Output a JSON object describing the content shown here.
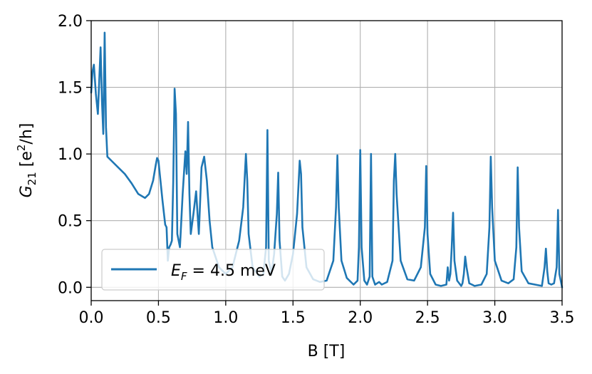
{
  "chart_data": {
    "type": "line",
    "title": "",
    "xlabel": "B [T]",
    "ylabel": {
      "main": "G",
      "sub": "21",
      "unit_open": " [e",
      "unit_sup": "2",
      "unit_close": "/h]"
    },
    "xlim": [
      0.0,
      3.5
    ],
    "ylim": [
      -0.1,
      2.0
    ],
    "xticks": [
      0.0,
      0.5,
      1.0,
      1.5,
      2.0,
      2.5,
      3.0,
      3.5
    ],
    "xtick_labels": [
      "0.0",
      "0.5",
      "1.0",
      "1.5",
      "2.0",
      "2.5",
      "3.0",
      "3.5"
    ],
    "yticks": [
      0.0,
      0.5,
      1.0,
      1.5,
      2.0
    ],
    "ytick_labels": [
      "0.0",
      "0.5",
      "1.0",
      "1.5",
      "2.0"
    ],
    "grid": true,
    "legend_position": "lower-left",
    "color": "#1f77b4",
    "series": [
      {
        "name": "E_F = 4.5 meV",
        "legend": {
          "main": "E",
          "sub": "F",
          "rest": " = 4.5 meV"
        },
        "x": [
          0.0,
          0.01,
          0.02,
          0.035,
          0.05,
          0.06,
          0.07,
          0.08,
          0.09,
          0.1,
          0.11,
          0.12,
          0.15,
          0.2,
          0.25,
          0.3,
          0.35,
          0.4,
          0.43,
          0.46,
          0.48,
          0.49,
          0.5,
          0.51,
          0.53,
          0.55,
          0.56,
          0.57,
          0.58,
          0.59,
          0.6,
          0.61,
          0.62,
          0.63,
          0.64,
          0.66,
          0.68,
          0.7,
          0.71,
          0.72,
          0.73,
          0.74,
          0.76,
          0.78,
          0.8,
          0.82,
          0.84,
          0.86,
          0.88,
          0.9,
          0.95,
          1.0,
          1.05,
          1.1,
          1.13,
          1.15,
          1.16,
          1.17,
          1.2,
          1.25,
          1.28,
          1.3,
          1.31,
          1.32,
          1.34,
          1.36,
          1.38,
          1.39,
          1.4,
          1.42,
          1.44,
          1.47,
          1.5,
          1.53,
          1.55,
          1.56,
          1.57,
          1.6,
          1.65,
          1.7,
          1.75,
          1.8,
          1.82,
          1.83,
          1.84,
          1.86,
          1.9,
          1.95,
          1.98,
          1.99,
          2.0,
          2.01,
          2.03,
          2.05,
          2.07,
          2.08,
          2.09,
          2.11,
          2.14,
          2.16,
          2.2,
          2.24,
          2.25,
          2.26,
          2.27,
          2.3,
          2.35,
          2.4,
          2.45,
          2.48,
          2.49,
          2.5,
          2.52,
          2.56,
          2.6,
          2.64,
          2.65,
          2.66,
          2.67,
          2.68,
          2.69,
          2.7,
          2.72,
          2.75,
          2.76,
          2.77,
          2.78,
          2.79,
          2.81,
          2.83,
          2.85,
          2.9,
          2.94,
          2.96,
          2.97,
          2.98,
          3.0,
          3.05,
          3.1,
          3.14,
          3.16,
          3.17,
          3.18,
          3.2,
          3.25,
          3.3,
          3.35,
          3.37,
          3.38,
          3.39,
          3.4,
          3.42,
          3.44,
          3.46,
          3.47,
          3.48,
          3.5
        ],
        "y": [
          1.46,
          1.62,
          1.67,
          1.45,
          1.3,
          1.55,
          1.8,
          1.4,
          1.15,
          1.91,
          1.2,
          0.98,
          0.95,
          0.9,
          0.85,
          0.78,
          0.7,
          0.67,
          0.7,
          0.8,
          0.92,
          0.97,
          0.95,
          0.85,
          0.65,
          0.47,
          0.45,
          0.2,
          0.3,
          0.32,
          0.35,
          0.8,
          1.49,
          1.3,
          0.4,
          0.3,
          0.7,
          1.02,
          0.85,
          1.24,
          0.7,
          0.4,
          0.55,
          0.72,
          0.4,
          0.9,
          0.98,
          0.8,
          0.5,
          0.3,
          0.15,
          0.1,
          0.15,
          0.35,
          0.6,
          1.0,
          0.8,
          0.4,
          0.15,
          0.08,
          0.1,
          0.3,
          1.18,
          0.2,
          0.1,
          0.25,
          0.55,
          0.86,
          0.35,
          0.08,
          0.05,
          0.1,
          0.25,
          0.55,
          0.95,
          0.85,
          0.45,
          0.15,
          0.06,
          0.04,
          0.05,
          0.2,
          0.6,
          0.99,
          0.6,
          0.2,
          0.07,
          0.02,
          0.05,
          0.3,
          1.03,
          0.3,
          0.05,
          0.02,
          0.08,
          1.0,
          0.08,
          0.02,
          0.04,
          0.02,
          0.04,
          0.2,
          0.8,
          1.0,
          0.7,
          0.2,
          0.06,
          0.05,
          0.15,
          0.45,
          0.91,
          0.4,
          0.1,
          0.02,
          0.01,
          0.02,
          0.15,
          0.05,
          0.1,
          0.3,
          0.56,
          0.2,
          0.05,
          0.01,
          0.03,
          0.1,
          0.23,
          0.15,
          0.03,
          0.02,
          0.01,
          0.02,
          0.1,
          0.45,
          0.98,
          0.6,
          0.2,
          0.05,
          0.03,
          0.06,
          0.3,
          0.9,
          0.45,
          0.12,
          0.03,
          0.02,
          0.01,
          0.15,
          0.29,
          0.12,
          0.03,
          0.02,
          0.03,
          0.15,
          0.58,
          0.1,
          0.0
        ]
      }
    ]
  }
}
